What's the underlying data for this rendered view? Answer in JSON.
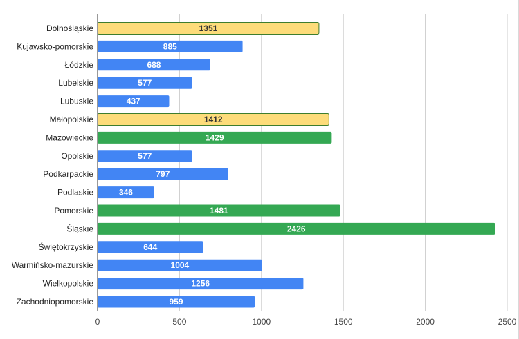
{
  "colors": {
    "blue": "#4285f4",
    "green": "#34a853",
    "yellow": "#fddc7a",
    "yellow_border": "#3e7d2f",
    "grid": "#cccccc",
    "axis": "#333333"
  },
  "chart_data": {
    "type": "bar",
    "orientation": "horizontal",
    "title": "",
    "xlabel": "",
    "ylabel": "",
    "xlim": [
      0,
      2500
    ],
    "ticks": [
      0,
      500,
      1000,
      1500,
      2000,
      2500
    ],
    "tick_labels": [
      "0",
      "500",
      "1000",
      "1500",
      "2000",
      "2500"
    ],
    "grid": true,
    "bars": [
      {
        "label": "Dolnośląskie",
        "value": 1351,
        "color": "yellow"
      },
      {
        "label": "Kujawsko-pomorskie",
        "value": 885,
        "color": "blue"
      },
      {
        "label": "Łódzkie",
        "value": 688,
        "color": "blue"
      },
      {
        "label": "Lubelskie",
        "value": 577,
        "color": "blue"
      },
      {
        "label": "Lubuskie",
        "value": 437,
        "color": "blue"
      },
      {
        "label": "Małopolskie",
        "value": 1412,
        "color": "yellow"
      },
      {
        "label": "Mazowieckie",
        "value": 1429,
        "color": "green"
      },
      {
        "label": "Opolskie",
        "value": 577,
        "color": "blue"
      },
      {
        "label": "Podkarpackie",
        "value": 797,
        "color": "blue"
      },
      {
        "label": "Podlaskie",
        "value": 346,
        "color": "blue"
      },
      {
        "label": "Pomorskie",
        "value": 1481,
        "color": "green"
      },
      {
        "label": "Śląskie",
        "value": 2426,
        "color": "green"
      },
      {
        "label": "Świętokrzyskie",
        "value": 644,
        "color": "blue"
      },
      {
        "label": "Warmińsko-mazurskie",
        "value": 1004,
        "color": "blue"
      },
      {
        "label": "Wielkopolskie",
        "value": 1256,
        "color": "blue"
      },
      {
        "label": "Zachodniopomorskie",
        "value": 959,
        "color": "blue"
      }
    ]
  }
}
